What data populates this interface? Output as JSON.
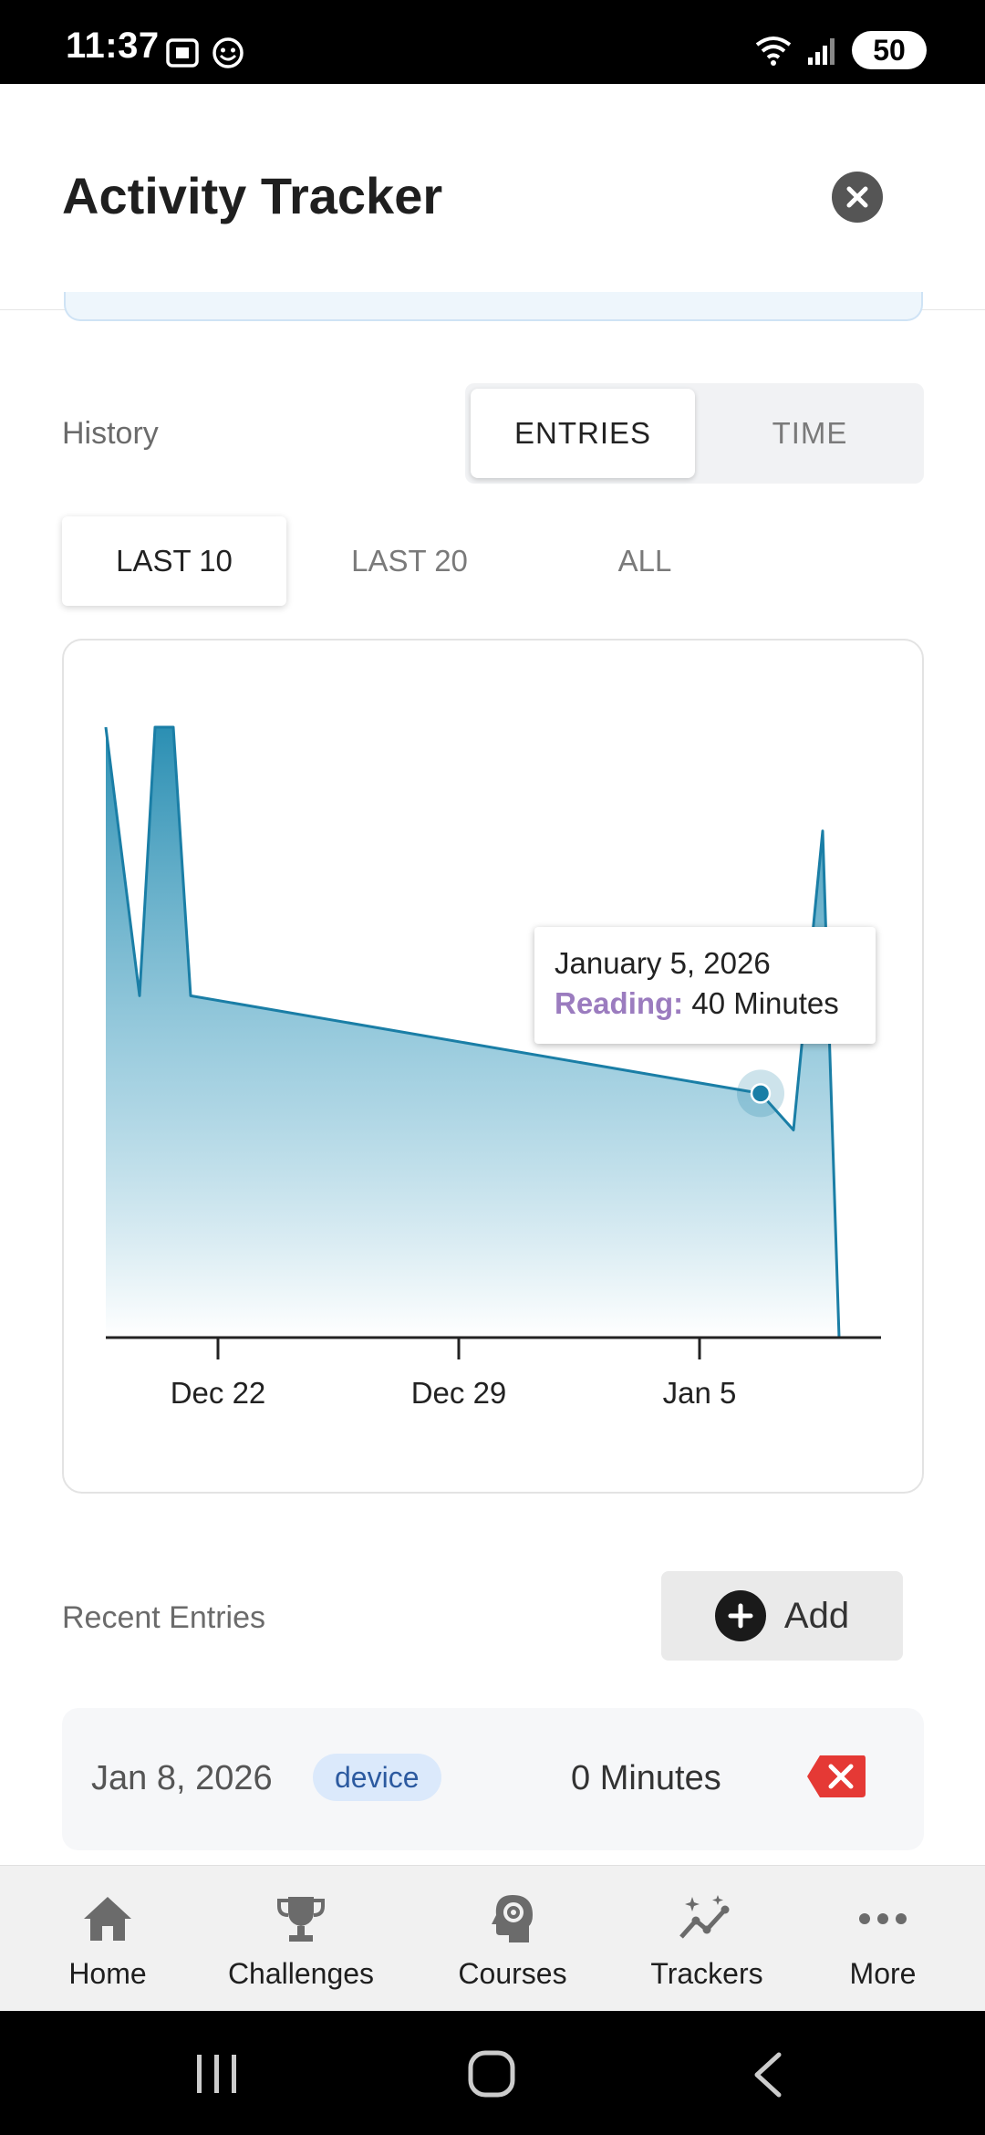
{
  "status_bar": {
    "time": "11:37",
    "battery": "50"
  },
  "header": {
    "title": "Activity Tracker"
  },
  "history": {
    "label": "History",
    "toggle": [
      {
        "label": "ENTRIES",
        "active": true
      },
      {
        "label": "TIME",
        "active": false
      }
    ],
    "ranges": [
      {
        "label": "LAST 10",
        "active": true
      },
      {
        "label": "LAST 20",
        "active": false
      },
      {
        "label": "ALL",
        "active": false
      }
    ]
  },
  "chart_data": {
    "type": "area",
    "x_ticks": [
      "Dec 22",
      "Dec 29",
      "Jan 5"
    ],
    "series": [
      {
        "values": [
          {
            "x": "2025-12-17",
            "y": 100
          },
          {
            "x": "2025-12-18",
            "y": 56
          },
          {
            "x": "2025-12-19",
            "y": 100
          },
          {
            "x": "2025-12-19",
            "y": 100
          },
          {
            "x": "2025-12-19",
            "y": 56
          },
          {
            "x": "2026-01-05",
            "y": 40
          },
          {
            "x": "2026-01-07",
            "y": 34
          },
          {
            "x": "2026-01-08",
            "y": 83
          },
          {
            "x": "2026-01-08",
            "y": 0
          }
        ]
      }
    ],
    "color": "#1a7ea6",
    "fill_gradient": [
      "#2b8fb3",
      "#ffffff"
    ],
    "tooltip": {
      "date": "January 5, 2026",
      "series": "Reading:",
      "value": "40 Minutes"
    }
  },
  "recent": {
    "label": "Recent Entries",
    "add_label": "Add",
    "entries": [
      {
        "date": "Jan 8, 2026",
        "source": "device",
        "value": "0 Minutes"
      }
    ]
  },
  "nav": [
    {
      "label": "Home",
      "icon": "home-icon"
    },
    {
      "label": "Challenges",
      "icon": "trophy-icon"
    },
    {
      "label": "Courses",
      "icon": "head-gear-icon"
    },
    {
      "label": "Trackers",
      "icon": "trend-sparkle-icon"
    },
    {
      "label": "More",
      "icon": "more-dots-icon"
    }
  ]
}
